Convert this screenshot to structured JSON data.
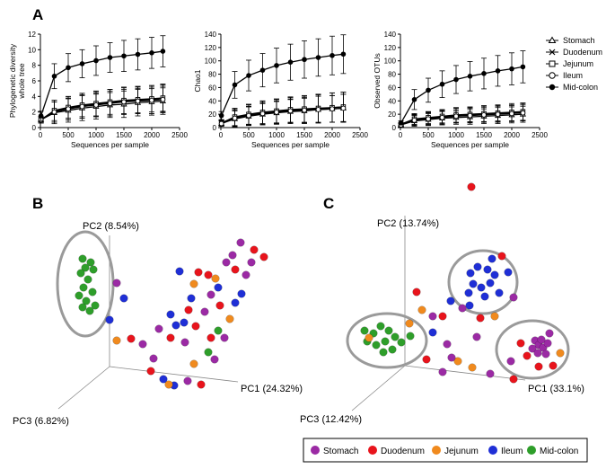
{
  "panel_labels": {
    "a": "A",
    "b": "B",
    "c": "C"
  },
  "colors": {
    "stomach": "#9b2aa4",
    "duodenum": "#e8141c",
    "jejunum": "#f08a1e",
    "ileum": "#1f2fd6",
    "midcolon": "#2e9e2a",
    "ellipse": "#9a9a9a",
    "line": "#000000"
  },
  "rarefaction_legend": [
    "Stomach",
    "Duodenum",
    "Jejunum",
    "Ileum",
    "Mid-colon"
  ],
  "pcoa_legend": [
    "Stomach",
    "Duodenum",
    "Jejunum",
    "Ileum",
    "Mid-colon"
  ],
  "chart_data": [
    {
      "type": "line",
      "title": "",
      "xlabel": "Sequences per sample",
      "ylabel_lines": [
        "Phylogenetic diversity",
        "whole tree"
      ],
      "xlim": [
        0,
        2500
      ],
      "ylim": [
        0,
        12
      ],
      "xticks": [
        "0",
        "500",
        "1000",
        "1500",
        "2000",
        "2500"
      ],
      "yticks": [
        "0",
        "2",
        "4",
        "6",
        "8",
        "10",
        "12"
      ],
      "x": [
        10,
        250,
        500,
        750,
        1000,
        1250,
        1500,
        1750,
        2000,
        2200
      ],
      "series": [
        {
          "name": "Stomach",
          "marker": "triangle",
          "values": [
            1.0,
            1.9,
            2.2,
            2.5,
            2.7,
            2.9,
            3.0,
            3.2,
            3.3,
            3.4
          ],
          "err": [
            0.4,
            1.4,
            1.5,
            1.6,
            1.6,
            1.6,
            1.7,
            1.7,
            1.7,
            1.7
          ]
        },
        {
          "name": "Duodenum",
          "marker": "x",
          "values": [
            1.0,
            2.1,
            2.5,
            2.8,
            3.0,
            3.2,
            3.4,
            3.5,
            3.6,
            3.8
          ],
          "err": [
            0.4,
            1.4,
            1.5,
            1.6,
            1.6,
            1.7,
            1.7,
            1.7,
            1.8,
            1.8
          ]
        },
        {
          "name": "Jejunum",
          "marker": "square",
          "values": [
            1.0,
            2.2,
            2.6,
            2.9,
            3.1,
            3.3,
            3.5,
            3.6,
            3.7,
            3.8
          ],
          "err": [
            0.4,
            1.3,
            1.4,
            1.5,
            1.6,
            1.6,
            1.7,
            1.7,
            1.7,
            1.7
          ]
        },
        {
          "name": "Ileum",
          "marker": "circle-open",
          "values": [
            1.0,
            2.0,
            2.4,
            2.7,
            2.9,
            3.1,
            3.3,
            3.4,
            3.5,
            3.6
          ],
          "err": [
            0.4,
            1.3,
            1.4,
            1.5,
            1.5,
            1.6,
            1.6,
            1.6,
            1.7,
            1.7
          ]
        },
        {
          "name": "Mid-colon",
          "marker": "circle-filled",
          "values": [
            1.5,
            6.6,
            7.7,
            8.2,
            8.6,
            9.0,
            9.2,
            9.4,
            9.6,
            9.8
          ],
          "err": [
            0.6,
            1.6,
            1.8,
            1.8,
            1.9,
            1.9,
            2.0,
            2.0,
            2.0,
            2.0
          ]
        }
      ]
    },
    {
      "type": "line",
      "title": "",
      "xlabel": "Sequences per sample",
      "ylabel_lines": [
        "Chao1"
      ],
      "xlim": [
        0,
        2500
      ],
      "ylim": [
        0,
        140
      ],
      "xticks": [
        "0",
        "500",
        "1000",
        "1500",
        "2000",
        "2500"
      ],
      "yticks": [
        "0",
        "20",
        "40",
        "60",
        "80",
        "100",
        "120",
        "140"
      ],
      "x": [
        10,
        250,
        500,
        750,
        1000,
        1250,
        1500,
        1750,
        2000,
        2200
      ],
      "series": [
        {
          "name": "Stomach",
          "marker": "triangle",
          "values": [
            6,
            13,
            17,
            20,
            22,
            24,
            25,
            27,
            28,
            29
          ],
          "err": [
            4,
            12,
            14,
            16,
            17,
            18,
            19,
            20,
            20,
            21
          ]
        },
        {
          "name": "Duodenum",
          "marker": "x",
          "values": [
            7,
            15,
            19,
            22,
            24,
            26,
            27,
            28,
            30,
            31
          ],
          "err": [
            4,
            13,
            15,
            17,
            18,
            19,
            20,
            21,
            22,
            22
          ]
        },
        {
          "name": "Jejunum",
          "marker": "square",
          "values": [
            7,
            16,
            20,
            23,
            25,
            27,
            28,
            29,
            30,
            31
          ],
          "err": [
            4,
            13,
            15,
            17,
            18,
            19,
            20,
            21,
            22,
            22
          ]
        },
        {
          "name": "Ileum",
          "marker": "circle-open",
          "values": [
            6,
            14,
            18,
            21,
            23,
            25,
            26,
            27,
            28,
            29
          ],
          "err": [
            4,
            12,
            14,
            16,
            17,
            18,
            19,
            20,
            20,
            21
          ]
        },
        {
          "name": "Mid-colon",
          "marker": "circle-filled",
          "values": [
            18,
            64,
            78,
            86,
            93,
            98,
            102,
            105,
            108,
            110
          ],
          "err": [
            6,
            20,
            23,
            25,
            26,
            27,
            28,
            28,
            29,
            29
          ]
        }
      ]
    },
    {
      "type": "line",
      "title": "",
      "xlabel": "Sequences per sample",
      "ylabel_lines": [
        "Observed OTUs"
      ],
      "xlim": [
        0,
        2500
      ],
      "ylim": [
        0,
        140
      ],
      "xticks": [
        "0",
        "500",
        "1000",
        "1500",
        "2000",
        "2500"
      ],
      "yticks": [
        "0",
        "20",
        "40",
        "60",
        "80",
        "100",
        "120",
        "140"
      ],
      "x": [
        10,
        250,
        500,
        750,
        1000,
        1250,
        1500,
        1750,
        2000,
        2200
      ],
      "series": [
        {
          "name": "Stomach",
          "marker": "triangle",
          "values": [
            4,
            10,
            12,
            14,
            15,
            16,
            17,
            18,
            19,
            20
          ],
          "err": [
            2,
            8,
            9,
            10,
            10,
            11,
            11,
            12,
            12,
            12
          ]
        },
        {
          "name": "Duodenum",
          "marker": "x",
          "values": [
            5,
            12,
            14,
            16,
            18,
            19,
            20,
            21,
            22,
            23
          ],
          "err": [
            2,
            8,
            9,
            10,
            11,
            11,
            12,
            12,
            12,
            13
          ]
        },
        {
          "name": "Jejunum",
          "marker": "square",
          "values": [
            5,
            13,
            15,
            17,
            19,
            20,
            21,
            22,
            23,
            24
          ],
          "err": [
            2,
            8,
            9,
            10,
            11,
            11,
            12,
            12,
            13,
            13
          ]
        },
        {
          "name": "Ileum",
          "marker": "circle-open",
          "values": [
            4,
            11,
            13,
            15,
            17,
            18,
            19,
            20,
            21,
            22
          ],
          "err": [
            2,
            8,
            9,
            10,
            10,
            11,
            11,
            12,
            12,
            12
          ]
        },
        {
          "name": "Mid-colon",
          "marker": "circle-filled",
          "values": [
            7,
            42,
            56,
            65,
            72,
            77,
            81,
            85,
            88,
            91
          ],
          "err": [
            3,
            15,
            18,
            20,
            21,
            22,
            23,
            23,
            24,
            24
          ]
        }
      ]
    },
    {
      "type": "scatter",
      "title": "",
      "axis_labels": {
        "pc1": "PC1 (24.32%)",
        "pc2": "PC2 (8.54%)",
        "pc3": "PC3 (6.82%)"
      }
    },
    {
      "type": "scatter",
      "title": "",
      "axis_labels": {
        "pc1": "PC1 (33.1%)",
        "pc2": "PC2 (13.74%)",
        "pc3": "PC3 (12.42%)"
      }
    }
  ]
}
